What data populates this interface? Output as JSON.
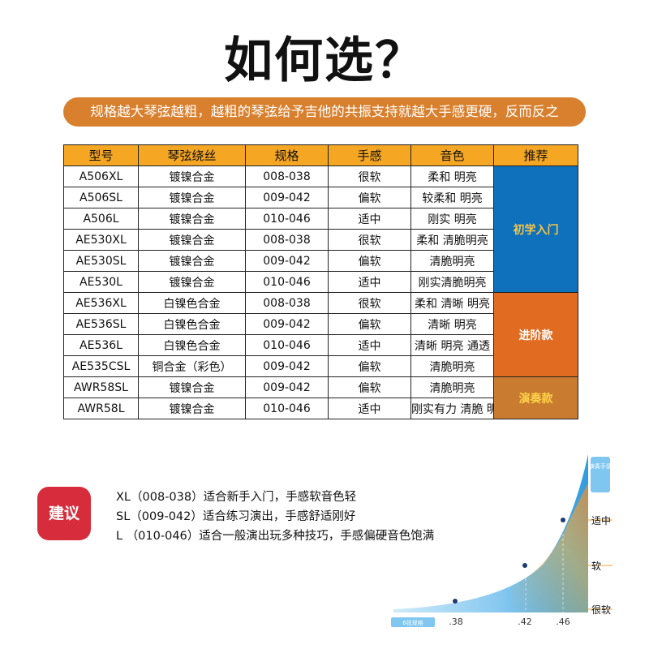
{
  "title": "如何选？",
  "banner": "规格越大琴弦越粗，越粗的琴弦给予吉他的共振支持就越大手感更硬，反而反之",
  "table": {
    "headers": [
      "型号",
      "琴弦绕丝",
      "规格",
      "手感",
      "音色",
      "推荐"
    ],
    "rows": [
      [
        "A506XL",
        "镀镍合金",
        "008-038",
        "很软",
        "柔和 明亮"
      ],
      [
        "A506SL",
        "镀镍合金",
        "009-042",
        "偏软",
        "较柔和 明亮"
      ],
      [
        "A506L",
        "镀镍合金",
        "010-046",
        "适中",
        "刚实 明亮"
      ],
      [
        "AE530XL",
        "镀镍合金",
        "008-038",
        "很软",
        "柔和 清脆明亮"
      ],
      [
        "AE530SL",
        "镀镍合金",
        "009-042",
        "偏软",
        "清脆明亮"
      ],
      [
        "AE530L",
        "镀镍合金",
        "010-046",
        "适中",
        "刚实清脆明亮"
      ],
      [
        "AE536XL",
        "白镍色合金",
        "008-038",
        "很软",
        "柔和 清晰 明亮"
      ],
      [
        "AE536SL",
        "白镍色合金",
        "009-042",
        "偏软",
        "清晰 明亮"
      ],
      [
        "AE536L",
        "白镍色合金",
        "010-046",
        "适中",
        "清晰 明亮 通透"
      ],
      [
        "AE535CSL",
        "铜合金（彩色）",
        "009-042",
        "偏软",
        "清脆明亮"
      ],
      [
        "AWR58SL",
        "镀镍合金",
        "009-042",
        "偏软",
        "清脆明亮"
      ],
      [
        "AWR58L",
        "镀镍合金",
        "010-046",
        "适中",
        "刚实有力 清脆 明亮"
      ]
    ],
    "recommend": [
      {
        "label": "初学入门",
        "rows": 6,
        "color": "#0f71bc"
      },
      {
        "label": "进阶款",
        "rows": 4,
        "color": "#e06b21"
      },
      {
        "label": "演奏款",
        "rows": 2,
        "color": "#c97c30"
      }
    ]
  },
  "suggest": {
    "icon_label": "建议",
    "lines": [
      "XL（008-038）适合新手入门，手感软音色轻",
      "SL（009-042）适合练习演出，手感舒适刚好",
      "L （010-046）适合一般演出玩多种技巧，手感偏硬音色饱满"
    ]
  },
  "chart": {
    "y_title": "演奏手感",
    "x_title": "6弦规格",
    "x_ticks": [
      ".38",
      ".42",
      ".46"
    ],
    "y_labels": [
      "很软",
      "软",
      "适中"
    ],
    "points": [
      "008-038",
      "009-042",
      "010-046"
    ]
  }
}
